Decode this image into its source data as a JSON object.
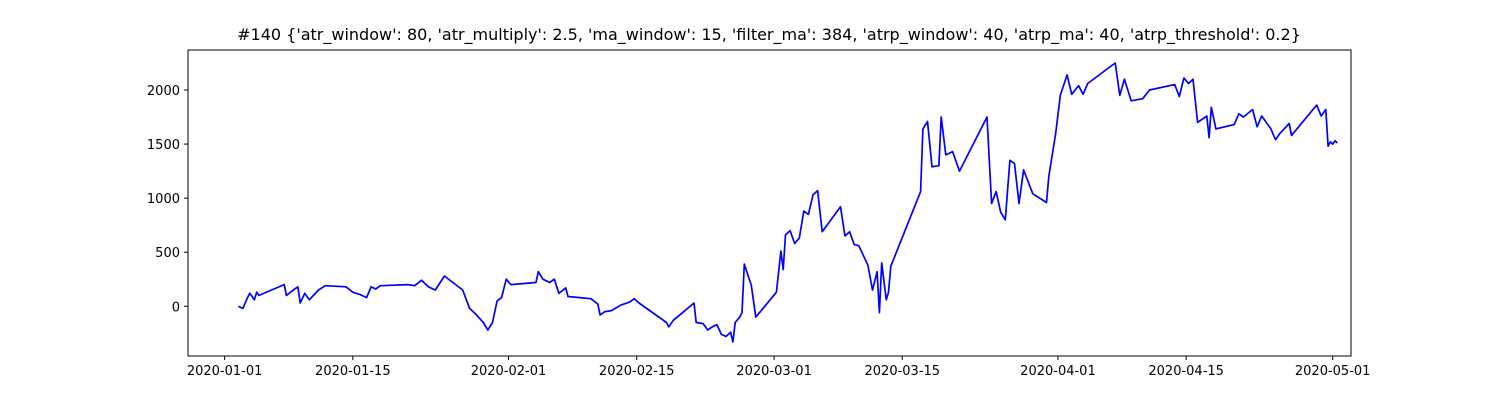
{
  "chart_data": {
    "type": "line",
    "title": "#140 {'atr_window': 80, 'atr_multiply': 2.5, 'ma_window': 15, 'filter_ma': 384, 'atrp_window': 40, 'atrp_ma': 40, 'atrp_threshold': 0.2}",
    "xlabel": "",
    "ylabel": "",
    "x_axis_type": "date",
    "xlim": [
      "2019-12-28",
      "2020-05-03"
    ],
    "ylim": [
      -460,
      2370
    ],
    "x_ticks": [
      "2020-01-01",
      "2020-01-15",
      "2020-02-01",
      "2020-02-15",
      "2020-03-01",
      "2020-03-15",
      "2020-04-01",
      "2020-04-15",
      "2020-05-01"
    ],
    "y_ticks": [
      0,
      500,
      1000,
      1500,
      2000
    ],
    "grid": false,
    "legend": "none",
    "series": [
      {
        "color": "#0000ff",
        "points": [
          [
            "2020-01-02T12:00",
            0
          ],
          [
            "2020-01-03T00:00",
            -20
          ],
          [
            "2020-01-03T12:00",
            80
          ],
          [
            "2020-01-03T18:00",
            120
          ],
          [
            "2020-01-04T06:00",
            60
          ],
          [
            "2020-01-04T12:00",
            130
          ],
          [
            "2020-01-04T18:00",
            100
          ],
          [
            "2020-01-07T12:00",
            200
          ],
          [
            "2020-01-07T18:00",
            100
          ],
          [
            "2020-01-08T12:00",
            150
          ],
          [
            "2020-01-09T00:00",
            180
          ],
          [
            "2020-01-09T06:00",
            30
          ],
          [
            "2020-01-09T18:00",
            120
          ],
          [
            "2020-01-10T06:00",
            60
          ],
          [
            "2020-01-11T06:00",
            150
          ],
          [
            "2020-01-12T00:00",
            190
          ],
          [
            "2020-01-14T06:00",
            180
          ],
          [
            "2020-01-15T00:00",
            130
          ],
          [
            "2020-01-15T18:00",
            110
          ],
          [
            "2020-01-16T12:00",
            80
          ],
          [
            "2020-01-17T00:00",
            180
          ],
          [
            "2020-01-17T12:00",
            160
          ],
          [
            "2020-01-18T00:00",
            190
          ],
          [
            "2020-01-21T00:00",
            200
          ],
          [
            "2020-01-21T18:00",
            190
          ],
          [
            "2020-01-22T12:00",
            240
          ],
          [
            "2020-01-23T06:00",
            180
          ],
          [
            "2020-01-24T00:00",
            150
          ],
          [
            "2020-01-25T00:00",
            280
          ],
          [
            "2020-01-27T00:00",
            150
          ],
          [
            "2020-01-27T18:00",
            -20
          ],
          [
            "2020-01-28T12:00",
            -80
          ],
          [
            "2020-01-29T06:00",
            -150
          ],
          [
            "2020-01-29T18:00",
            -220
          ],
          [
            "2020-01-30T06:00",
            -150
          ],
          [
            "2020-01-30T18:00",
            50
          ],
          [
            "2020-01-31T06:00",
            80
          ],
          [
            "2020-01-31T18:00",
            250
          ],
          [
            "2020-02-01T06:00",
            200
          ],
          [
            "2020-02-04T00:00",
            220
          ],
          [
            "2020-02-04T06:00",
            320
          ],
          [
            "2020-02-04T18:00",
            250
          ],
          [
            "2020-02-05T12:00",
            220
          ],
          [
            "2020-02-06T00:00",
            250
          ],
          [
            "2020-02-06T12:00",
            120
          ],
          [
            "2020-02-07T06:00",
            170
          ],
          [
            "2020-02-07T12:00",
            90
          ],
          [
            "2020-02-10T00:00",
            70
          ],
          [
            "2020-02-10T18:00",
            20
          ],
          [
            "2020-02-11T00:00",
            -80
          ],
          [
            "2020-02-11T12:00",
            -50
          ],
          [
            "2020-02-12T06:00",
            -40
          ],
          [
            "2020-02-13T06:00",
            10
          ],
          [
            "2020-02-14T06:00",
            40
          ],
          [
            "2020-02-14T18:00",
            70
          ],
          [
            "2020-02-15T06:00",
            30
          ],
          [
            "2020-02-18T06:00",
            -150
          ],
          [
            "2020-02-18T12:00",
            -190
          ],
          [
            "2020-02-19T00:00",
            -130
          ],
          [
            "2020-02-20T00:00",
            -60
          ],
          [
            "2020-02-21T06:00",
            30
          ],
          [
            "2020-02-21T12:00",
            -150
          ],
          [
            "2020-02-22T06:00",
            -160
          ],
          [
            "2020-02-22T18:00",
            -220
          ],
          [
            "2020-02-23T06:00",
            -190
          ],
          [
            "2020-02-23T18:00",
            -170
          ],
          [
            "2020-02-24T06:00",
            -260
          ],
          [
            "2020-02-24T18:00",
            -280
          ],
          [
            "2020-02-25T06:00",
            -240
          ],
          [
            "2020-02-25T12:00",
            -330
          ],
          [
            "2020-02-25T18:00",
            -150
          ],
          [
            "2020-02-26T06:00",
            -100
          ],
          [
            "2020-02-26T12:00",
            -60
          ],
          [
            "2020-02-26T18:00",
            390
          ],
          [
            "2020-02-27T06:00",
            260
          ],
          [
            "2020-02-27T12:00",
            200
          ],
          [
            "2020-02-28T00:00",
            -100
          ],
          [
            "2020-03-01T06:00",
            130
          ],
          [
            "2020-03-01T18:00",
            510
          ],
          [
            "2020-03-02T00:00",
            340
          ],
          [
            "2020-03-02T06:00",
            660
          ],
          [
            "2020-03-02T18:00",
            700
          ],
          [
            "2020-03-03T06:00",
            580
          ],
          [
            "2020-03-03T18:00",
            630
          ],
          [
            "2020-03-04T06:00",
            880
          ],
          [
            "2020-03-04T18:00",
            850
          ],
          [
            "2020-03-05T06:00",
            1030
          ],
          [
            "2020-03-05T18:00",
            1070
          ],
          [
            "2020-03-06T06:00",
            690
          ],
          [
            "2020-03-08T06:00",
            920
          ],
          [
            "2020-03-08T18:00",
            650
          ],
          [
            "2020-03-09T06:00",
            690
          ],
          [
            "2020-03-09T18:00",
            570
          ],
          [
            "2020-03-10T06:00",
            560
          ],
          [
            "2020-03-11T06:00",
            380
          ],
          [
            "2020-03-11T18:00",
            150
          ],
          [
            "2020-03-12T06:00",
            320
          ],
          [
            "2020-03-12T12:00",
            -60
          ],
          [
            "2020-03-12T18:00",
            400
          ],
          [
            "2020-03-13T06:00",
            60
          ],
          [
            "2020-03-13T12:00",
            130
          ],
          [
            "2020-03-13T18:00",
            370
          ],
          [
            "2020-03-17T00:00",
            1060
          ],
          [
            "2020-03-17T06:00",
            1640
          ],
          [
            "2020-03-17T18:00",
            1710
          ],
          [
            "2020-03-18T06:00",
            1290
          ],
          [
            "2020-03-19T00:00",
            1300
          ],
          [
            "2020-03-19T06:00",
            1750
          ],
          [
            "2020-03-19T18:00",
            1400
          ],
          [
            "2020-03-20T12:00",
            1430
          ],
          [
            "2020-03-21T06:00",
            1250
          ],
          [
            "2020-03-24T06:00",
            1750
          ],
          [
            "2020-03-24T18:00",
            950
          ],
          [
            "2020-03-25T06:00",
            1060
          ],
          [
            "2020-03-25T18:00",
            870
          ],
          [
            "2020-03-26T06:00",
            800
          ],
          [
            "2020-03-26T18:00",
            1350
          ],
          [
            "2020-03-27T06:00",
            1320
          ],
          [
            "2020-03-27T18:00",
            950
          ],
          [
            "2020-03-28T06:00",
            1260
          ],
          [
            "2020-03-29T06:00",
            1040
          ],
          [
            "2020-03-30T18:00",
            960
          ],
          [
            "2020-03-31T00:00",
            1200
          ],
          [
            "2020-03-31T18:00",
            1600
          ],
          [
            "2020-04-01T06:00",
            1950
          ],
          [
            "2020-04-02T00:00",
            2140
          ],
          [
            "2020-04-02T12:00",
            1960
          ],
          [
            "2020-04-03T06:00",
            2040
          ],
          [
            "2020-04-03T18:00",
            1960
          ],
          [
            "2020-04-04T06:00",
            2060
          ],
          [
            "2020-04-07T06:00",
            2250
          ],
          [
            "2020-04-07T18:00",
            1950
          ],
          [
            "2020-04-08T06:00",
            2100
          ],
          [
            "2020-04-09T00:00",
            1900
          ],
          [
            "2020-04-10T06:00",
            1920
          ],
          [
            "2020-04-11T00:00",
            2000
          ],
          [
            "2020-04-13T18:00",
            2050
          ],
          [
            "2020-04-14T06:00",
            1940
          ],
          [
            "2020-04-14T18:00",
            2110
          ],
          [
            "2020-04-15T06:00",
            2060
          ],
          [
            "2020-04-15T18:00",
            2100
          ],
          [
            "2020-04-16T06:00",
            1700
          ],
          [
            "2020-04-17T06:00",
            1760
          ],
          [
            "2020-04-17T12:00",
            1560
          ],
          [
            "2020-04-17T18:00",
            1840
          ],
          [
            "2020-04-18T06:00",
            1640
          ],
          [
            "2020-04-20T06:00",
            1680
          ],
          [
            "2020-04-20T18:00",
            1780
          ],
          [
            "2020-04-21T06:00",
            1750
          ],
          [
            "2020-04-22T06:00",
            1820
          ],
          [
            "2020-04-22T18:00",
            1660
          ],
          [
            "2020-04-23T06:00",
            1760
          ],
          [
            "2020-04-24T06:00",
            1640
          ],
          [
            "2020-04-24T18:00",
            1540
          ],
          [
            "2020-04-25T06:00",
            1600
          ],
          [
            "2020-04-26T06:00",
            1690
          ],
          [
            "2020-04-26T12:00",
            1580
          ],
          [
            "2020-04-29T06:00",
            1860
          ],
          [
            "2020-04-29T18:00",
            1760
          ],
          [
            "2020-04-30T06:00",
            1820
          ],
          [
            "2020-04-30T12:00",
            1480
          ],
          [
            "2020-04-30T18:00",
            1520
          ],
          [
            "2020-05-01T00:00",
            1500
          ],
          [
            "2020-05-01T06:00",
            1530
          ],
          [
            "2020-05-01T12:00",
            1510
          ]
        ]
      }
    ]
  }
}
